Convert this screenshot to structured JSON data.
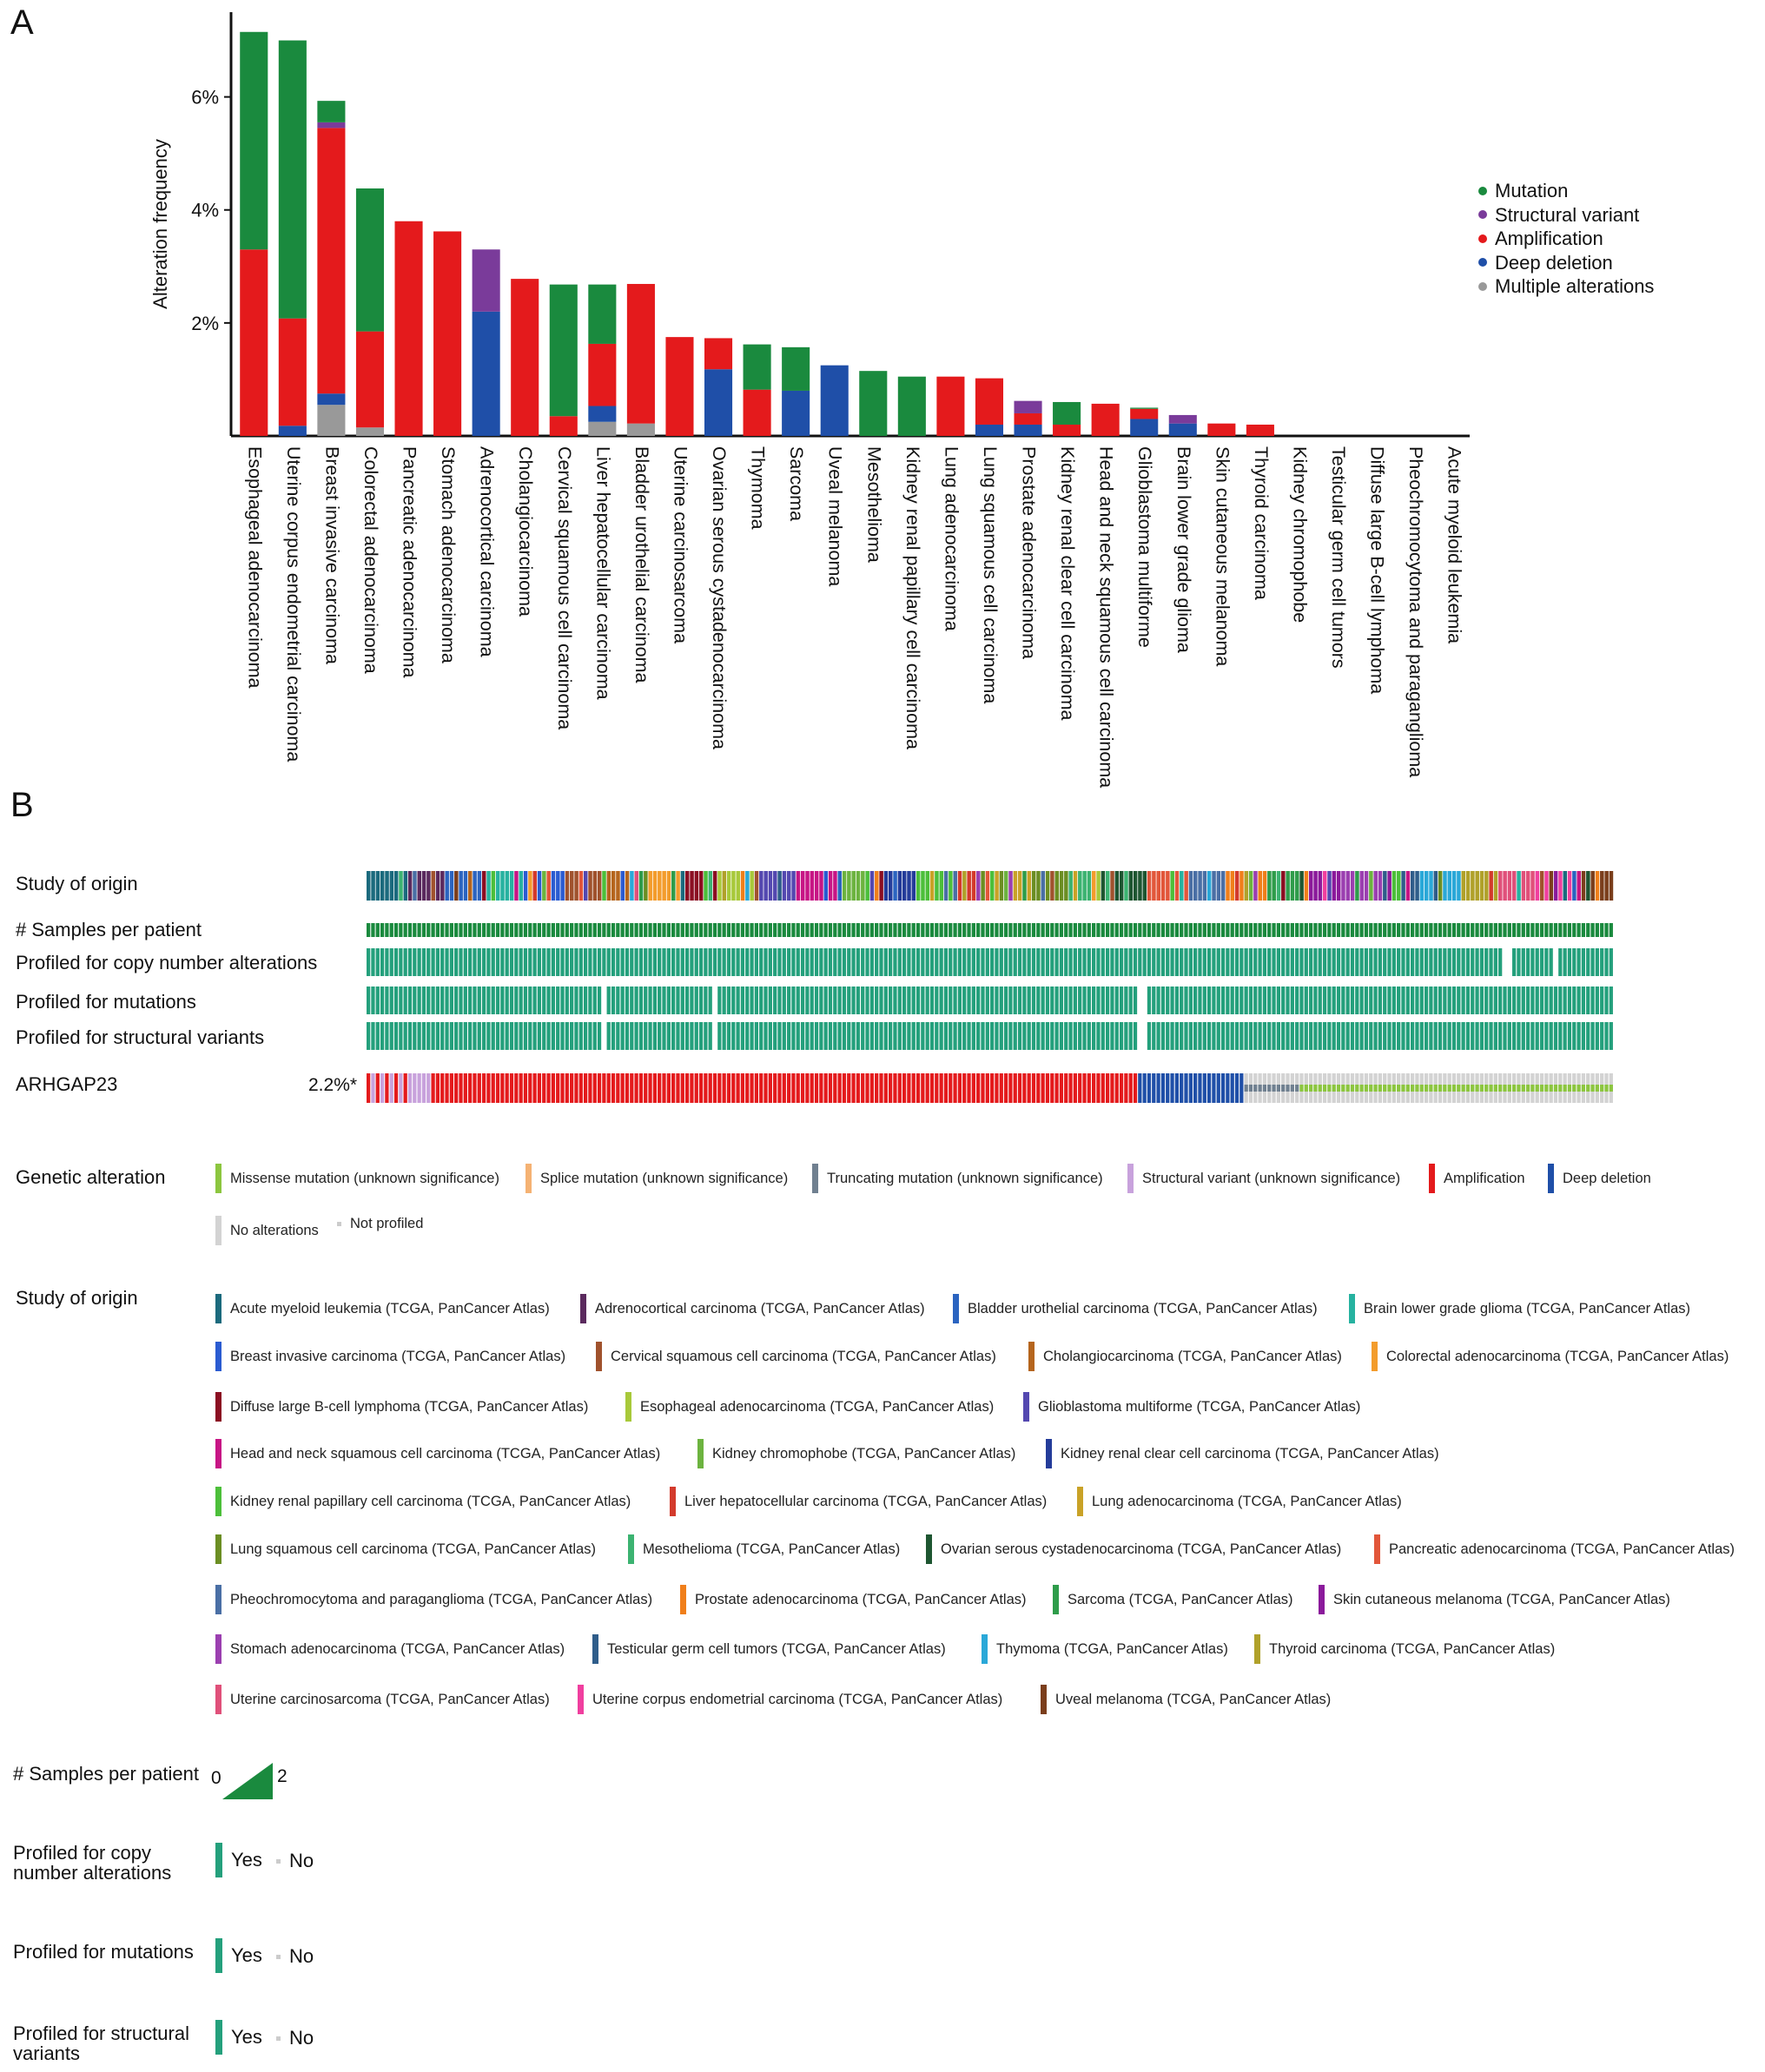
{
  "panel_a_label": "A",
  "panel_b_label": "B",
  "chart_data": {
    "type": "bar",
    "stacked": true,
    "ylabel": "Alteration frequency",
    "yticks": [
      "2%",
      "4%",
      "6%"
    ],
    "ylim": [
      0,
      7.5
    ],
    "legend_position": "right",
    "colors": {
      "mutation": "#1a8a3e",
      "structural": "#7a3b9a",
      "amplification": "#e41a1c",
      "deletion": "#1f4fa8",
      "multiple": "#999999"
    },
    "categories": [
      "Esophageal adenocarcinoma",
      "Uterine corpus endometrial carcinoma",
      "Breast invasive carcinoma",
      "Colorectal adenocarcinoma",
      "Pancreatic adenocarcinoma",
      "Stomach adenocarcinoma",
      "Adrenocortical carcinoma",
      "Cholangiocarcinoma",
      "Cervical squamous cell carcinoma",
      "Liver hepatocellular carcinoma",
      "Bladder urothelial carcinoma",
      "Uterine carcinosarcoma",
      "Ovarian serous cystadenocarcinoma",
      "Thymoma",
      "Sarcoma",
      "Uveal melanoma",
      "Mesothelioma",
      "Kidney renal papillary cell carcinoma",
      "Lung adenocarcinoma",
      "Lung squamous cell carcinoma",
      "Prostate adenocarcinoma",
      "Kidney renal clear cell carcinoma",
      "Head and neck squamous cell carcinoma",
      "Glioblastoma multiforme",
      "Brain lower grade glioma",
      "Skin cutaneous melanoma",
      "Thyroid carcinoma",
      "Kidney chromophobe",
      "Testicular germ cell tumors",
      "Diffuse large B-cell lymphoma",
      "Pheochromocytoma and paraganglioma",
      "Acute myeloid leukemia"
    ],
    "series": [
      {
        "name": "Multiple alterations",
        "key": "multiple",
        "values": [
          0,
          0,
          0.55,
          0.15,
          0,
          0,
          0,
          0,
          0,
          0.25,
          0.22,
          0,
          0,
          0,
          0,
          0,
          0,
          0,
          0,
          0,
          0,
          0,
          0,
          0,
          0,
          0,
          0,
          0,
          0,
          0,
          0,
          0
        ]
      },
      {
        "name": "Deep deletion",
        "key": "deletion",
        "values": [
          0,
          0.18,
          0.2,
          0,
          0,
          0,
          2.2,
          0,
          0,
          0.28,
          0,
          0,
          1.18,
          0,
          0.8,
          1.25,
          0,
          0,
          0,
          0.2,
          0.2,
          0,
          0,
          0.3,
          0.22,
          0,
          0,
          0,
          0,
          0,
          0,
          0
        ]
      },
      {
        "name": "Amplification",
        "key": "amplification",
        "values": [
          3.3,
          1.9,
          4.7,
          1.7,
          3.8,
          3.62,
          0,
          2.78,
          0.35,
          1.1,
          2.47,
          1.75,
          0.55,
          0.82,
          0,
          0,
          0,
          0,
          1.05,
          0.82,
          0.2,
          0.2,
          0.57,
          0.18,
          0,
          0.22,
          0.2,
          0,
          0,
          0,
          0,
          0
        ]
      },
      {
        "name": "Structural variant",
        "key": "structural",
        "values": [
          0,
          0,
          0.1,
          0,
          0,
          0,
          1.1,
          0,
          0,
          0,
          0,
          0,
          0,
          0,
          0,
          0,
          0,
          0,
          0,
          0,
          0.22,
          0,
          0,
          0,
          0.15,
          0,
          0,
          0,
          0,
          0,
          0,
          0
        ]
      },
      {
        "name": "Mutation",
        "key": "mutation",
        "values": [
          3.85,
          4.92,
          0.38,
          2.53,
          0,
          0,
          0,
          0,
          2.33,
          1.05,
          0,
          0,
          0,
          0.8,
          0.77,
          0,
          1.15,
          1.05,
          0,
          0,
          0,
          0.4,
          0,
          0.02,
          0,
          0,
          0,
          0,
          0,
          0,
          0,
          0
        ]
      }
    ],
    "legend": [
      "Mutation",
      "Structural variant",
      "Amplification",
      "Deep deletion",
      "Multiple alterations"
    ]
  },
  "oncoprint": {
    "tracks": [
      "Study of origin",
      "# Samples per patient",
      "Profiled for copy number alterations",
      "Profiled for mutations",
      "Profiled for structural variants"
    ],
    "gene": "ARHGAP23",
    "gene_pct": "2.2%*"
  },
  "legends": {
    "genetic_alteration_title": "Genetic alteration",
    "genetic_alteration": [
      {
        "label": "Missense mutation (unknown significance)",
        "color": "#8cc63f"
      },
      {
        "label": "Splice mutation (unknown significance)",
        "color": "#f5b273"
      },
      {
        "label": "Truncating mutation (unknown significance)",
        "color": "#708090"
      },
      {
        "label": "Structural variant (unknown significance)",
        "color": "#c8a2dc"
      },
      {
        "label": "Amplification",
        "color": "#e41a1c"
      },
      {
        "label": "Deep deletion",
        "color": "#1f4fa8"
      },
      {
        "label": "No alterations",
        "color": "#d3d3d3"
      },
      {
        "label": "Not profiled",
        "color": "#cccccc"
      }
    ],
    "study_origin_title": "Study of origin",
    "study_origin": [
      {
        "label": "Acute myeloid leukemia (TCGA, PanCancer Atlas)",
        "color": "#1b6a7d"
      },
      {
        "label": "Adrenocortical carcinoma (TCGA, PanCancer Atlas)",
        "color": "#5b2a5e"
      },
      {
        "label": "Bladder urothelial carcinoma (TCGA, PanCancer Atlas)",
        "color": "#2b64c0"
      },
      {
        "label": "Brain lower grade glioma (TCGA, PanCancer Atlas)",
        "color": "#26b2a0"
      },
      {
        "label": "Breast invasive carcinoma (TCGA, PanCancer Atlas)",
        "color": "#2a5bd1"
      },
      {
        "label": "Cervical squamous cell carcinoma (TCGA, PanCancer Atlas)",
        "color": "#a0522d"
      },
      {
        "label": "Cholangiocarcinoma (TCGA, PanCancer Atlas)",
        "color": "#b5651d"
      },
      {
        "label": "Colorectal adenocarcinoma (TCGA, PanCancer Atlas)",
        "color": "#f39c2c"
      },
      {
        "label": "Diffuse large B-cell lymphoma (TCGA, PanCancer Atlas)",
        "color": "#8b0e22"
      },
      {
        "label": "Esophageal adenocarcinoma (TCGA, PanCancer Atlas)",
        "color": "#a8c93a"
      },
      {
        "label": "Glioblastoma multiforme (TCGA, PanCancer Atlas)",
        "color": "#5448b0"
      },
      {
        "label": "Head and neck squamous cell carcinoma (TCGA, PanCancer Atlas)",
        "color": "#c71585"
      },
      {
        "label": "Kidney chromophobe (TCGA, PanCancer Atlas)",
        "color": "#6cb33f"
      },
      {
        "label": "Kidney renal clear cell carcinoma (TCGA, PanCancer Atlas)",
        "color": "#243c9a"
      },
      {
        "label": "Kidney renal papillary cell carcinoma (TCGA, PanCancer Atlas)",
        "color": "#4cbf3a"
      },
      {
        "label": "Liver hepatocellular carcinoma (TCGA, PanCancer Atlas)",
        "color": "#d33a2c"
      },
      {
        "label": "Lung adenocarcinoma (TCGA, PanCancer Atlas)",
        "color": "#c9a227"
      },
      {
        "label": "Lung squamous cell carcinoma (TCGA, PanCancer Atlas)",
        "color": "#6b8e23"
      },
      {
        "label": "Mesothelioma (TCGA, PanCancer Atlas)",
        "color": "#3cb371"
      },
      {
        "label": "Ovarian serous cystadenocarcinoma (TCGA, PanCancer Atlas)",
        "color": "#1e5631"
      },
      {
        "label": "Pancreatic adenocarcinoma (TCGA, PanCancer Atlas)",
        "color": "#e2563a"
      },
      {
        "label": "Pheochromocytoma and paraganglioma (TCGA, PanCancer Atlas)",
        "color": "#4a6fa5"
      },
      {
        "label": "Prostate adenocarcinoma (TCGA, PanCancer Atlas)",
        "color": "#f07f1a"
      },
      {
        "label": "Sarcoma (TCGA, PanCancer Atlas)",
        "color": "#2e9c4a"
      },
      {
        "label": "Skin cutaneous melanoma (TCGA, PanCancer Atlas)",
        "color": "#8b1a9b"
      },
      {
        "label": "Stomach adenocarcinoma (TCGA, PanCancer Atlas)",
        "color": "#9b3fb0"
      },
      {
        "label": "Testicular germ cell tumors (TCGA, PanCancer Atlas)",
        "color": "#2f5d8a"
      },
      {
        "label": "Thymoma (TCGA, PanCancer Atlas)",
        "color": "#2aa8d8"
      },
      {
        "label": "Thyroid carcinoma (TCGA, PanCancer Atlas)",
        "color": "#b0a12a"
      },
      {
        "label": "Uterine carcinosarcoma (TCGA, PanCancer Atlas)",
        "color": "#e0507a"
      },
      {
        "label": "Uterine corpus endometrial carcinoma (TCGA, PanCancer Atlas)",
        "color": "#f03f9f"
      },
      {
        "label": "Uveal melanoma (TCGA, PanCancer Atlas)",
        "color": "#7b3e1c"
      }
    ],
    "samples_title": "# Samples per patient",
    "samples_min": "0",
    "samples_max": "2",
    "profiled_cna_title": "Profiled for copy number alterations",
    "profiled_mut_title": "Profiled for mutations",
    "profiled_sv_title": "Profiled for structural variants",
    "yes": "Yes",
    "no": "No"
  }
}
